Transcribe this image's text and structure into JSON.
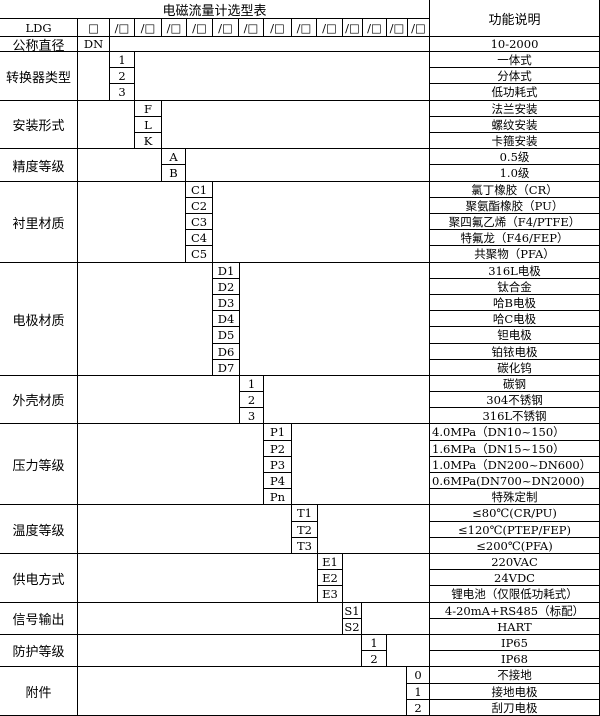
{
  "title": "电磁流量计选型表",
  "function_header": "功能说明",
  "model_prefix": "LDG",
  "header_boxes": [
    "□",
    "/□",
    "/□",
    "/□",
    "/□",
    "/□",
    "/□",
    "/□",
    "/□",
    "/□",
    "/□",
    "/□",
    "/□",
    "/□"
  ],
  "nominal": {
    "label": "公称直径",
    "code": "DN",
    "function": "10-2000"
  },
  "groups": [
    {
      "label": "转换器类型",
      "codes": [
        "1",
        "2",
        "3"
      ],
      "functions": [
        "一体式",
        "分体式",
        "低功耗式"
      ]
    },
    {
      "label": "安装形式",
      "codes": [
        "F",
        "L",
        "K"
      ],
      "functions": [
        "法兰安装",
        "螺纹安装",
        "卡箍安装"
      ]
    },
    {
      "label": "精度等级",
      "codes": [
        "A",
        "B"
      ],
      "functions": [
        "0.5级",
        "1.0级"
      ]
    },
    {
      "label": "衬里材质",
      "codes": [
        "C1",
        "C2",
        "C3",
        "C4",
        "C5"
      ],
      "functions": [
        "氯丁橡胶（CR）",
        "聚氨酯橡胶（PU）",
        "聚四氟乙烯（F4/PTFE）",
        "特氟龙（F46/FEP）",
        "共聚物（PFA）"
      ]
    },
    {
      "label": "电极材质",
      "codes": [
        "D1",
        "D2",
        "D3",
        "D4",
        "D5",
        "D6",
        "D7"
      ],
      "functions": [
        "316L电极",
        "钛合金",
        "哈B电极",
        "哈C电极",
        "钽电极",
        "铂铱电极",
        "碳化钨"
      ]
    },
    {
      "label": "外壳材质",
      "codes": [
        "1",
        "2",
        "3"
      ],
      "functions": [
        "碳钢",
        "304不锈钢",
        "316L不锈钢"
      ]
    },
    {
      "label": "压力等级",
      "codes": [
        "P1",
        "P2",
        "P3",
        "P4",
        "Pn"
      ],
      "functions": [
        "4.0MPa（DN10~150）",
        "1.6MPa（DN15~150）",
        "1.0MPa（DN200~DN600）",
        "0.6MPa(DN700~DN2000)",
        "特殊定制"
      ],
      "left_aligned": [
        true,
        true,
        true,
        true,
        false
      ]
    },
    {
      "label": "温度等级",
      "codes": [
        "T1",
        "T2",
        "T3"
      ],
      "functions": [
        "≤80℃(CR/PU)",
        "≤120℃(PTEP/FEP)",
        "≤200℃(PFA)"
      ]
    },
    {
      "label": "供电方式",
      "codes": [
        "E1",
        "E2",
        "E3"
      ],
      "functions": [
        "220VAC",
        "24VDC",
        "锂电池（仅限低功耗式）"
      ]
    },
    {
      "label": "信号输出",
      "codes": [
        "S1",
        "S2"
      ],
      "functions": [
        "4-20mA+RS485（标配）",
        "HART"
      ]
    },
    {
      "label": "防护等级",
      "codes": [
        "1",
        "2"
      ],
      "functions": [
        "IP65",
        "IP68"
      ]
    },
    {
      "label": "附件",
      "codes": [
        "0",
        "1",
        "2"
      ],
      "functions": [
        "不接地",
        "接地电极",
        "刮刀电极"
      ]
    }
  ]
}
